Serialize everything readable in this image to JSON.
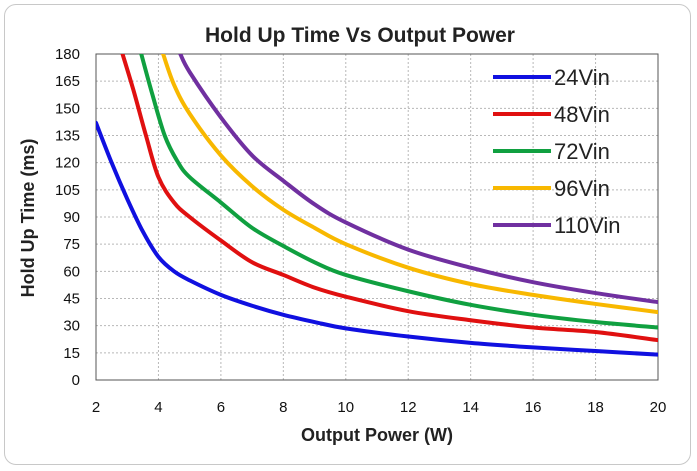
{
  "chart_data": {
    "type": "line",
    "title": "Hold Up Time Vs Output Power",
    "xlabel": "Output Power (W)",
    "ylabel": "Hold Up Time (ms)",
    "xlim": [
      2,
      20
    ],
    "ylim": [
      0,
      180
    ],
    "x_ticks": [
      2,
      4,
      6,
      8,
      10,
      12,
      14,
      16,
      18,
      20
    ],
    "y_ticks": [
      0,
      15,
      30,
      45,
      60,
      75,
      90,
      105,
      120,
      135,
      150,
      165,
      180
    ],
    "grid": true,
    "legend_position": "top-right",
    "series": [
      {
        "name": "24Vin",
        "color": "#1010e0",
        "points": [
          [
            2,
            142
          ],
          [
            2.5,
            120
          ],
          [
            3,
            100
          ],
          [
            3.5,
            82
          ],
          [
            4,
            68
          ],
          [
            4.5,
            60
          ],
          [
            5,
            55
          ],
          [
            6,
            47
          ],
          [
            7,
            41
          ],
          [
            8,
            36
          ],
          [
            9,
            32
          ],
          [
            10,
            28.5
          ],
          [
            12,
            24
          ],
          [
            14,
            20.5
          ],
          [
            16,
            18
          ],
          [
            18,
            16
          ],
          [
            20,
            14
          ]
        ]
      },
      {
        "name": "48Vin",
        "color": "#e01010",
        "points": [
          [
            2.85,
            180
          ],
          [
            3.2,
            160
          ],
          [
            3.6,
            135
          ],
          [
            4,
            112
          ],
          [
            4.5,
            98
          ],
          [
            5,
            90
          ],
          [
            6,
            77
          ],
          [
            7,
            65
          ],
          [
            8,
            58
          ],
          [
            9,
            51
          ],
          [
            10,
            46
          ],
          [
            12,
            38
          ],
          [
            14,
            33
          ],
          [
            16,
            29
          ],
          [
            18,
            26.5
          ],
          [
            20,
            22
          ]
        ]
      },
      {
        "name": "72Vin",
        "color": "#10a040",
        "points": [
          [
            3.45,
            180
          ],
          [
            3.8,
            158
          ],
          [
            4.2,
            135
          ],
          [
            4.6,
            121
          ],
          [
            5,
            112
          ],
          [
            6,
            98
          ],
          [
            7,
            84
          ],
          [
            8,
            74
          ],
          [
            9,
            65
          ],
          [
            10,
            58
          ],
          [
            12,
            49
          ],
          [
            14,
            41.5
          ],
          [
            16,
            36
          ],
          [
            18,
            32
          ],
          [
            20,
            29
          ]
        ]
      },
      {
        "name": "96Vin",
        "color": "#f8b800",
        "points": [
          [
            4.15,
            180
          ],
          [
            4.5,
            163
          ],
          [
            5,
            147
          ],
          [
            6,
            124
          ],
          [
            7,
            107
          ],
          [
            8,
            94
          ],
          [
            9,
            84
          ],
          [
            10,
            75
          ],
          [
            12,
            62
          ],
          [
            14,
            53
          ],
          [
            16,
            47
          ],
          [
            18,
            42
          ],
          [
            20,
            37.5
          ]
        ]
      },
      {
        "name": "110Vin",
        "color": "#7030a0",
        "points": [
          [
            4.7,
            180
          ],
          [
            5,
            170
          ],
          [
            6,
            145
          ],
          [
            7,
            124
          ],
          [
            8,
            110
          ],
          [
            9,
            97
          ],
          [
            10,
            87
          ],
          [
            12,
            72
          ],
          [
            14,
            62
          ],
          [
            16,
            54
          ],
          [
            18,
            48
          ],
          [
            20,
            43
          ]
        ]
      }
    ]
  }
}
